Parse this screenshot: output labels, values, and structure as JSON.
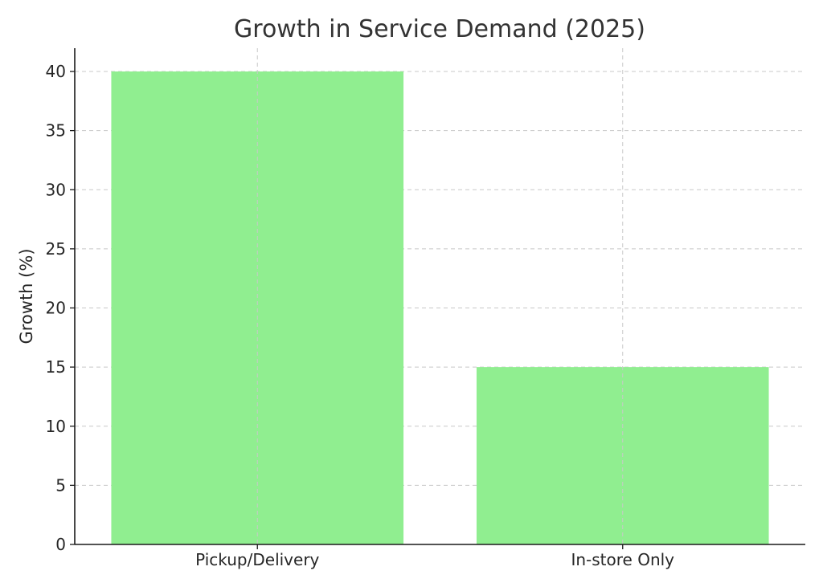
{
  "chart_data": {
    "type": "bar",
    "title": "Growth in Service Demand (2025)",
    "xlabel": "",
    "ylabel": "Growth (%)",
    "categories": [
      "Pickup/Delivery",
      "In-store Only"
    ],
    "values": [
      40,
      15
    ],
    "ylim": [
      0,
      42
    ],
    "yticks": [
      0,
      5,
      10,
      15,
      20,
      25,
      30,
      35,
      40
    ],
    "grid": true,
    "bar_color": "#90ee90"
  }
}
